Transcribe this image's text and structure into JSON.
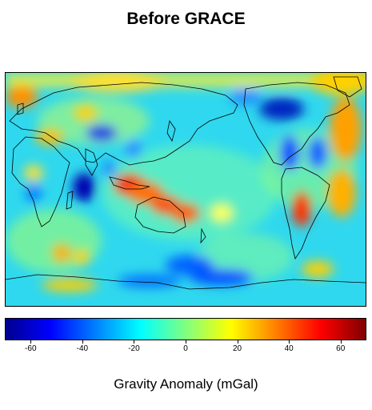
{
  "title": "Before GRACE",
  "colorbar": {
    "label": "Gravity Anomaly (mGal)",
    "min": -70,
    "max": 70,
    "ticks": [
      "-60",
      "-40",
      "-20",
      "0",
      "20",
      "40",
      "60"
    ],
    "tick_values": [
      -60,
      -40,
      -20,
      0,
      20,
      40,
      60
    ],
    "colormap": "jet"
  },
  "map": {
    "projection": "equirectangular, Pacific-centered",
    "background_color": "#2fd8ee",
    "coastline_color": "#000000"
  }
}
